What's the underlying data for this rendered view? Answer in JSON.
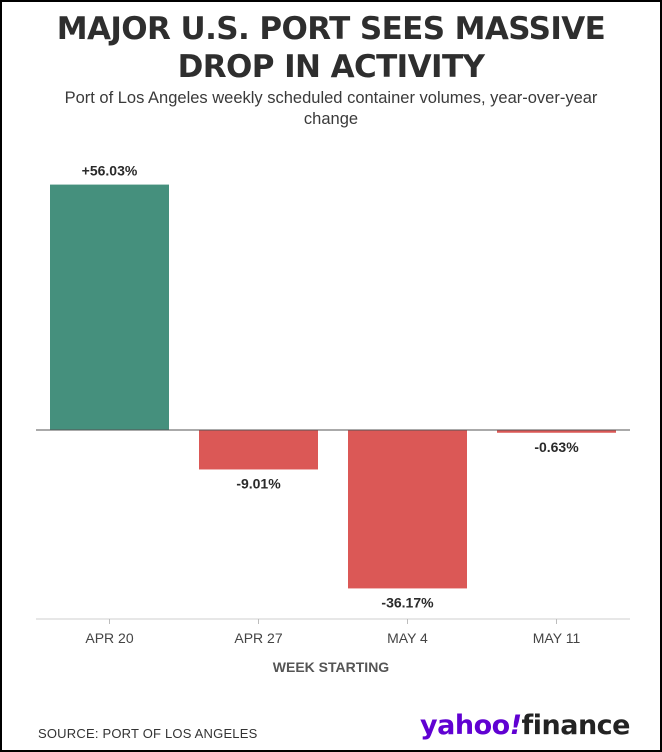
{
  "title_lines": [
    "MAJOR U.S. PORT SEES MASSIVE",
    "DROP IN ACTIVITY"
  ],
  "subtitle": "Port of Los Angeles weekly scheduled container volumes, year-over-year change",
  "source": "SOURCE: PORT OF LOS ANGELES",
  "logo": {
    "yahoo": "yahoo",
    "bang": "!",
    "finance": "finance"
  },
  "chart_data": {
    "type": "bar",
    "title": "MAJOR U.S. PORT SEES MASSIVE DROP IN ACTIVITY",
    "subtitle": "Port of Los Angeles weekly scheduled container volumes, year-over-year change",
    "xlabel": "WEEK STARTING",
    "ylabel": "",
    "categories": [
      "APR 20",
      "APR 27",
      "MAY 4",
      "MAY 11"
    ],
    "values": [
      56.03,
      -9.01,
      -36.17,
      -0.63
    ],
    "data_labels": [
      "+56.03%",
      "-9.01%",
      "-36.17%",
      "-0.63%"
    ],
    "ylim": [
      -42,
      60
    ],
    "grid": false,
    "colors": {
      "positive": "#45907d",
      "negative": "#db5856"
    }
  }
}
